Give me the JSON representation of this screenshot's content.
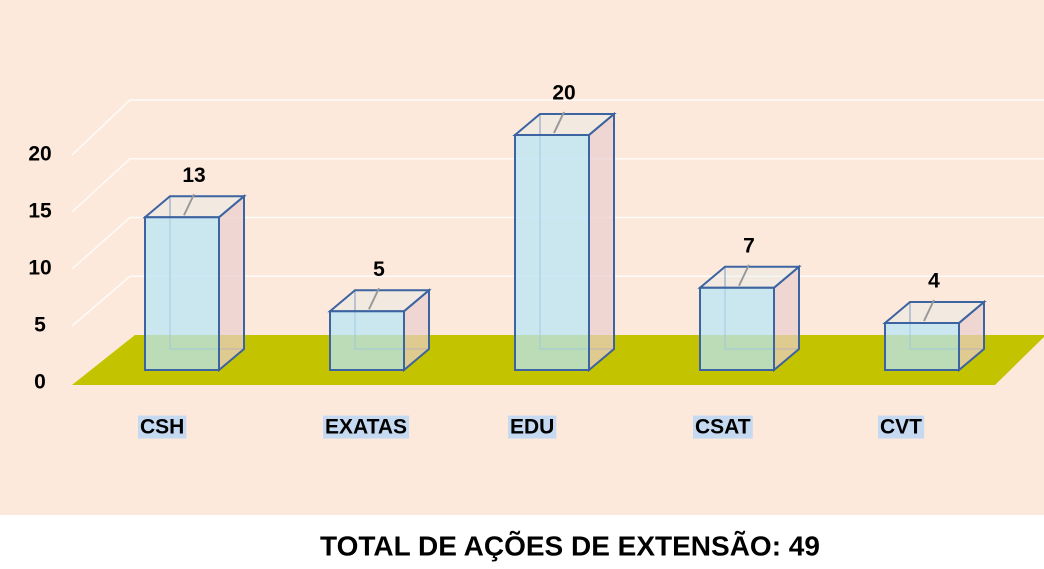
{
  "chart_data": {
    "type": "bar3d",
    "title": "TOTAL DE AÇÕES DE EXTENSÃO: 49",
    "categories": [
      "CSH",
      "EXATAS",
      "EDU",
      "CSAT",
      "CVT"
    ],
    "values": [
      13,
      5,
      20,
      7,
      4
    ],
    "ylim": [
      0,
      20
    ],
    "yticks": [
      0,
      5,
      10,
      15,
      20
    ],
    "grid": true
  }
}
